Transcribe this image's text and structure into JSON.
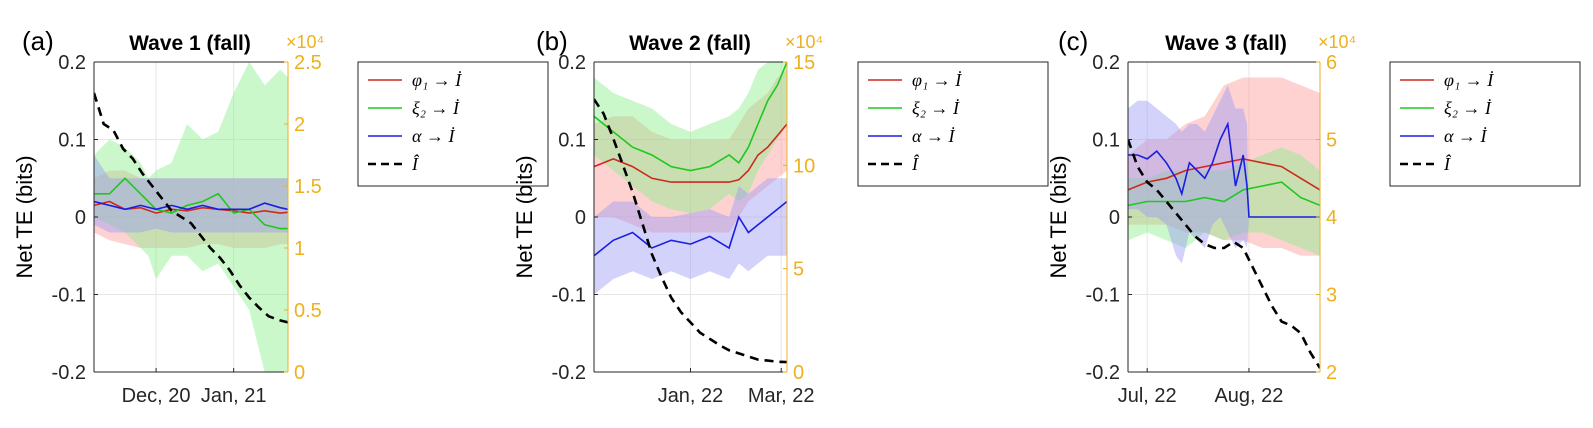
{
  "chart_data": [
    {
      "type": "line",
      "panel_label": "(a)",
      "title": "Wave 1 (fall)",
      "ylabel": "Net TE (bits)",
      "ylim": [
        -0.2,
        0.2
      ],
      "yticks": [
        "0.2",
        "0.1",
        "0",
        "-0.1",
        "-0.2"
      ],
      "y2lim": [
        0,
        2.5
      ],
      "y2ticks": [
        "2.5",
        "2",
        "1.5",
        "1",
        "0.5",
        "0"
      ],
      "y2_multiplier": "×10⁴",
      "x_range": [
        0,
        100
      ],
      "xticks": [
        {
          "pos": 32,
          "label": "Dec, 20"
        },
        {
          "pos": 72,
          "label": "Jan, 21"
        }
      ],
      "grid": true,
      "legend_position": "outside-right",
      "series": [
        {
          "name": "φ₁ → İ",
          "color": "#cc2a1e",
          "band_color": "#ff9b9b",
          "x": [
            0,
            8,
            16,
            24,
            32,
            40,
            48,
            56,
            64,
            72,
            80,
            88,
            96,
            100
          ],
          "values": [
            0.015,
            0.02,
            0.01,
            0.012,
            0.005,
            0.01,
            0.008,
            0.012,
            0.01,
            0.008,
            0.005,
            0.008,
            0.005,
            0.006
          ],
          "lower": [
            -0.02,
            -0.03,
            -0.035,
            -0.04,
            -0.04,
            -0.04,
            -0.04,
            -0.035,
            -0.035,
            -0.04,
            -0.04,
            -0.04,
            -0.035,
            -0.035
          ],
          "upper": [
            0.05,
            0.06,
            0.06,
            0.05,
            0.05,
            0.05,
            0.05,
            0.05,
            0.05,
            0.05,
            0.05,
            0.05,
            0.05,
            0.05
          ]
        },
        {
          "name": "ξ₂ → İ",
          "color": "#1ec81e",
          "band_color": "#8af08a",
          "x": [
            0,
            8,
            16,
            24,
            28,
            32,
            40,
            48,
            56,
            64,
            72,
            80,
            88,
            96,
            100
          ],
          "values": [
            0.03,
            0.03,
            0.05,
            0.03,
            0.02,
            0.01,
            0.005,
            0.015,
            0.02,
            0.03,
            0.005,
            0.01,
            -0.01,
            -0.015,
            -0.015
          ],
          "lower": [
            0,
            -0.01,
            -0.02,
            -0.04,
            -0.05,
            -0.08,
            -0.05,
            -0.05,
            -0.07,
            -0.06,
            -0.09,
            -0.12,
            -0.2,
            -0.2,
            -0.2
          ],
          "upper": [
            0.08,
            0.1,
            0.09,
            0.07,
            0.05,
            0.06,
            0.07,
            0.12,
            0.1,
            0.11,
            0.16,
            0.2,
            0.17,
            0.19,
            0.18
          ]
        },
        {
          "name": "α → İ",
          "color": "#1a1ee0",
          "band_color": "#9b9bf5",
          "x": [
            0,
            8,
            16,
            24,
            32,
            40,
            48,
            56,
            64,
            72,
            80,
            88,
            96,
            100
          ],
          "values": [
            0.02,
            0.015,
            0.01,
            0.015,
            0.01,
            0.015,
            0.01,
            0.015,
            0.01,
            0.01,
            0.01,
            0.018,
            0.012,
            0.01
          ],
          "lower": [
            -0.01,
            -0.02,
            -0.02,
            -0.02,
            -0.015,
            -0.02,
            -0.02,
            -0.02,
            -0.02,
            -0.02,
            -0.02,
            -0.02,
            -0.02,
            -0.02
          ],
          "upper": [
            0.08,
            0.05,
            0.05,
            0.05,
            0.05,
            0.05,
            0.05,
            0.05,
            0.05,
            0.05,
            0.05,
            0.05,
            0.05,
            0.05
          ]
        },
        {
          "name": "Î",
          "color": "#000000",
          "dashed": true,
          "axis": "right",
          "x": [
            0,
            5,
            10,
            15,
            20,
            25,
            30,
            35,
            40,
            45,
            50,
            55,
            60,
            65,
            70,
            75,
            80,
            85,
            90,
            95,
            100
          ],
          "values": [
            2.25,
            2.0,
            1.95,
            1.8,
            1.72,
            1.6,
            1.5,
            1.4,
            1.3,
            1.25,
            1.2,
            1.1,
            1.0,
            0.92,
            0.82,
            0.7,
            0.6,
            0.52,
            0.45,
            0.42,
            0.4
          ]
        }
      ]
    },
    {
      "type": "line",
      "panel_label": "(b)",
      "title": "Wave 2 (fall)",
      "ylabel": "Net TE (bits)",
      "ylim": [
        -0.2,
        0.2
      ],
      "yticks": [
        "0.2",
        "0.1",
        "0",
        "-0.1",
        "-0.2"
      ],
      "y2lim": [
        0,
        15
      ],
      "y2ticks": [
        "15",
        "10",
        "5",
        "0"
      ],
      "y2_multiplier": "×10⁴",
      "x_range": [
        0,
        100
      ],
      "xticks": [
        {
          "pos": 50,
          "label": "Jan, 22"
        },
        {
          "pos": 97,
          "label": "Mar, 22"
        }
      ],
      "grid": true,
      "legend_position": "outside-right",
      "series": [
        {
          "name": "φ₁ → İ",
          "color": "#cc2a1e",
          "band_color": "#ff9b9b",
          "x": [
            0,
            10,
            20,
            30,
            40,
            50,
            60,
            70,
            75,
            80,
            85,
            90,
            95,
            100
          ],
          "values": [
            0.065,
            0.075,
            0.065,
            0.05,
            0.045,
            0.045,
            0.045,
            0.045,
            0.048,
            0.06,
            0.08,
            0.09,
            0.105,
            0.12
          ],
          "lower": [
            0,
            0,
            -0.01,
            -0.02,
            -0.02,
            -0.02,
            -0.02,
            -0.02,
            0,
            0.02,
            0.03,
            0.04,
            0.05,
            0.06
          ],
          "upper": [
            0.12,
            0.13,
            0.13,
            0.11,
            0.1,
            0.1,
            0.1,
            0.1,
            0.12,
            0.14,
            0.15,
            0.16,
            0.18,
            0.19
          ]
        },
        {
          "name": "ξ₂ → İ",
          "color": "#1ec81e",
          "band_color": "#8af08a",
          "x": [
            0,
            10,
            20,
            30,
            40,
            50,
            60,
            70,
            75,
            80,
            85,
            90,
            95,
            100
          ],
          "values": [
            0.13,
            0.11,
            0.09,
            0.08,
            0.065,
            0.06,
            0.065,
            0.08,
            0.07,
            0.09,
            0.12,
            0.15,
            0.17,
            0.2
          ],
          "lower": [
            0.08,
            0.06,
            0.04,
            0.02,
            0.01,
            0.005,
            0.01,
            0.03,
            0.02,
            0.03,
            0.06,
            0.08,
            0.1,
            0.12
          ],
          "upper": [
            0.18,
            0.16,
            0.15,
            0.14,
            0.12,
            0.11,
            0.12,
            0.13,
            0.14,
            0.16,
            0.19,
            0.2,
            0.2,
            0.2
          ]
        },
        {
          "name": "α → İ",
          "color": "#1a1ee0",
          "band_color": "#9b9bf5",
          "x": [
            0,
            10,
            20,
            30,
            40,
            50,
            60,
            70,
            75,
            80,
            85,
            90,
            95,
            100
          ],
          "values": [
            -0.05,
            -0.03,
            -0.02,
            -0.04,
            -0.03,
            -0.035,
            -0.025,
            -0.04,
            0.0,
            -0.02,
            -0.01,
            0.0,
            0.01,
            0.02
          ],
          "lower": [
            -0.1,
            -0.08,
            -0.07,
            -0.08,
            -0.07,
            -0.08,
            -0.07,
            -0.08,
            -0.06,
            -0.07,
            -0.06,
            -0.05,
            -0.05,
            -0.05
          ],
          "upper": [
            0.0,
            0.02,
            0.02,
            0.0,
            0.0,
            0.005,
            0.01,
            0.0,
            0.04,
            0.03,
            0.04,
            0.05,
            0.05,
            0.05
          ]
        },
        {
          "name": "Î",
          "color": "#000000",
          "dashed": true,
          "axis": "right",
          "x": [
            0,
            5,
            10,
            15,
            20,
            25,
            30,
            35,
            40,
            45,
            50,
            55,
            60,
            65,
            70,
            75,
            80,
            85,
            90,
            95,
            100
          ],
          "values": [
            13.2,
            12.5,
            11.3,
            10.0,
            8.7,
            7.2,
            5.7,
            4.6,
            3.6,
            2.9,
            2.4,
            1.9,
            1.6,
            1.3,
            1.05,
            0.9,
            0.75,
            0.6,
            0.55,
            0.5,
            0.48
          ]
        }
      ]
    },
    {
      "type": "line",
      "panel_label": "(c)",
      "title": "Wave 3 (fall)",
      "ylabel": "Net TE (bits)",
      "ylim": [
        -0.2,
        0.2
      ],
      "yticks": [
        "0.2",
        "0.1",
        "0",
        "-0.1",
        "-0.2"
      ],
      "y2lim": [
        2,
        6
      ],
      "y2ticks": [
        "6",
        "5",
        "4",
        "3",
        "2"
      ],
      "y2_multiplier": "×10⁴",
      "x_range": [
        0,
        100
      ],
      "xticks": [
        {
          "pos": 10,
          "label": "Jul, 22"
        },
        {
          "pos": 63,
          "label": "Aug, 22"
        }
      ],
      "grid": true,
      "legend_position": "outside-right",
      "series": [
        {
          "name": "φ₁ → İ",
          "color": "#cc2a1e",
          "band_color": "#ff9b9b",
          "x": [
            0,
            10,
            20,
            30,
            40,
            50,
            60,
            70,
            80,
            90,
            100
          ],
          "values": [
            0.035,
            0.045,
            0.05,
            0.06,
            0.065,
            0.07,
            0.075,
            0.07,
            0.065,
            0.05,
            0.035
          ],
          "lower": [
            -0.01,
            -0.01,
            -0.01,
            -0.02,
            -0.02,
            -0.03,
            -0.03,
            -0.04,
            -0.04,
            -0.05,
            -0.05
          ],
          "upper": [
            0.08,
            0.1,
            0.1,
            0.12,
            0.13,
            0.17,
            0.18,
            0.18,
            0.18,
            0.17,
            0.16
          ]
        },
        {
          "name": "ξ₂ → İ",
          "color": "#1ec81e",
          "band_color": "#8af08a",
          "x": [
            0,
            10,
            20,
            30,
            40,
            50,
            60,
            70,
            80,
            90,
            100
          ],
          "values": [
            0.015,
            0.02,
            0.02,
            0.02,
            0.025,
            0.02,
            0.035,
            0.04,
            0.045,
            0.025,
            0.015
          ],
          "lower": [
            -0.03,
            -0.02,
            -0.03,
            -0.04,
            -0.02,
            -0.03,
            -0.02,
            -0.02,
            -0.03,
            -0.04,
            -0.05
          ],
          "upper": [
            0.05,
            0.05,
            0.06,
            0.06,
            0.06,
            0.06,
            0.07,
            0.08,
            0.09,
            0.08,
            0.06
          ]
        },
        {
          "name": "α → İ",
          "color": "#1a1ee0",
          "band_color": "#9b9bf5",
          "x": [
            0,
            5,
            10,
            15,
            20,
            25,
            28,
            32,
            36,
            40,
            44,
            48,
            52,
            56,
            60,
            62,
            63,
            70,
            80,
            90,
            100
          ],
          "values": [
            0.08,
            0.08,
            0.075,
            0.085,
            0.07,
            0.05,
            0.03,
            0.07,
            0.06,
            0.05,
            0.07,
            0.1,
            0.12,
            0.04,
            0.08,
            0.04,
            0.0,
            0.0,
            0.0,
            0.0,
            0.0
          ],
          "lower": [
            0.01,
            0.01,
            0.0,
            0.0,
            -0.01,
            -0.05,
            -0.06,
            -0.02,
            -0.03,
            -0.04,
            -0.01,
            0.0,
            -0.02,
            -0.04,
            -0.03,
            -0.04,
            0.0,
            0.0,
            0.0,
            0.0,
            0.0
          ],
          "upper": [
            0.14,
            0.15,
            0.15,
            0.14,
            0.13,
            0.12,
            0.11,
            0.12,
            0.12,
            0.11,
            0.13,
            0.15,
            0.17,
            0.14,
            0.14,
            0.12,
            0.0,
            0.0,
            0.0,
            0.0,
            0.0
          ]
        },
        {
          "name": "Î",
          "color": "#000000",
          "dashed": true,
          "axis": "right",
          "x": [
            0,
            5,
            10,
            15,
            20,
            25,
            30,
            35,
            40,
            45,
            50,
            55,
            60,
            65,
            70,
            75,
            80,
            85,
            90,
            95,
            100
          ],
          "values": [
            5.0,
            4.65,
            4.45,
            4.35,
            4.2,
            4.05,
            3.9,
            3.75,
            3.65,
            3.6,
            3.6,
            3.68,
            3.6,
            3.35,
            3.1,
            2.85,
            2.65,
            2.6,
            2.5,
            2.25,
            2.05
          ]
        }
      ]
    }
  ]
}
